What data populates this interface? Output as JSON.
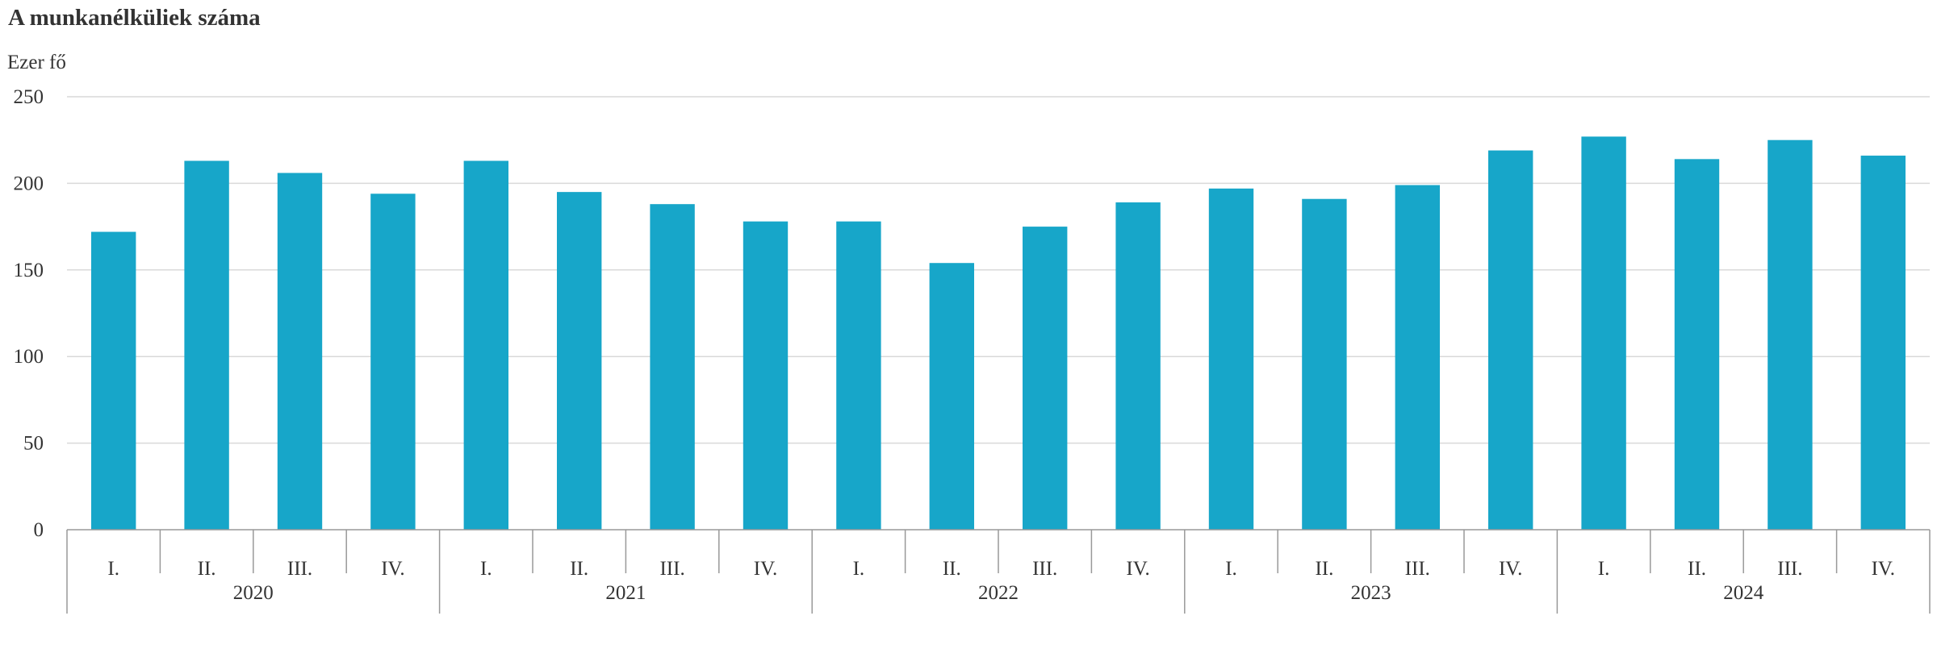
{
  "chart_data": {
    "type": "bar",
    "title": "A munkanélküliek száma",
    "ylabel": "Ezer fő",
    "xlabel": "",
    "ylim": [
      0,
      250
    ],
    "yticks": [
      0,
      50,
      100,
      150,
      200,
      250
    ],
    "grid": true,
    "legend": "none",
    "bar_color": "#17a6c9",
    "groups": [
      "2020",
      "2021",
      "2022",
      "2023",
      "2024"
    ],
    "quarters": [
      "I.",
      "II.",
      "III.",
      "IV."
    ],
    "categories": [
      "2020 I.",
      "2020 II.",
      "2020 III.",
      "2020 IV.",
      "2021 I.",
      "2021 II.",
      "2021 III.",
      "2021 IV.",
      "2022 I.",
      "2022 II.",
      "2022 III.",
      "2022 IV.",
      "2023 I.",
      "2023 II.",
      "2023 III.",
      "2023 IV.",
      "2024 I.",
      "2024 II.",
      "2024 III.",
      "2024 IV."
    ],
    "values": [
      172,
      213,
      206,
      194,
      213,
      195,
      188,
      178,
      178,
      154,
      175,
      189,
      197,
      191,
      199,
      219,
      227,
      214,
      225,
      216
    ]
  }
}
